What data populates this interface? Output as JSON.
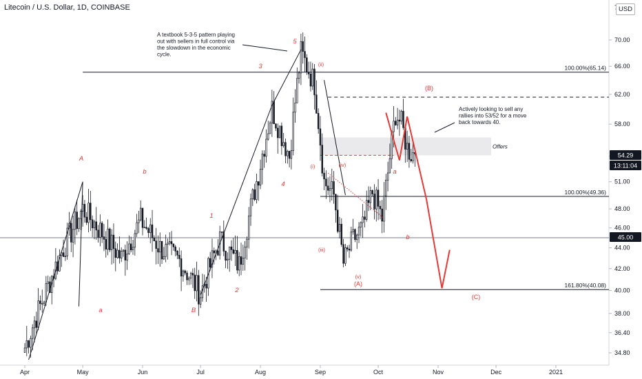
{
  "header": {
    "title": "Litecoin / U.S. Dollar, 1D, COINBASE",
    "currency_button": "USD"
  },
  "chart_data": {
    "type": "candlestick",
    "title": "Litecoin / U.S. Dollar, 1D, COINBASE",
    "x_labels": [
      "Apr",
      "May",
      "Jun",
      "Jul",
      "Aug",
      "Sep",
      "Oct",
      "Nov",
      "Dec",
      "2021"
    ],
    "x_label_days": [
      0,
      30,
      61,
      91,
      122,
      153,
      183,
      214,
      244,
      275
    ],
    "y_ticks": [
      "34.80",
      "36.40",
      "38.00",
      "40.00",
      "42.00",
      "44.00",
      "46.00",
      "48.00",
      "51.00",
      "54.00",
      "58.00",
      "62.00",
      "66.00",
      "70.00"
    ],
    "y_tick_values": [
      34.8,
      36.4,
      38.0,
      40.0,
      42.0,
      44.0,
      46.0,
      48.0,
      51.0,
      54.0,
      58.0,
      62.0,
      66.0,
      70.0
    ],
    "axis_top_label": "7",
    "scale": "log",
    "candle_color": "#131722",
    "wave_color": "#e53935",
    "price_badges": [
      {
        "label": "54.29",
        "value": 54.29,
        "style": "dark"
      },
      {
        "label": "13:11:04",
        "value": 52.9,
        "style": "dark"
      },
      {
        "label": "45.00",
        "value": 45.0,
        "style": "dark"
      }
    ],
    "fib_levels": [
      {
        "label": "100.00%(65.14)",
        "value": 65.14
      },
      {
        "label": "100.00%(49.36)",
        "value": 49.36
      },
      {
        "label": "161.80%(40.08)",
        "value": 40.08
      }
    ],
    "horizontal_lines": [
      {
        "value": 45.0,
        "style": "solid-gray"
      },
      {
        "value": 61.6,
        "style": "dashed"
      },
      {
        "value": 54.1,
        "style": "dashed-red"
      }
    ],
    "offers_zone": {
      "label": "Offers",
      "from": 54.1,
      "to": 56.3
    },
    "annotations": [
      {
        "text": [
          "A textbook 5-3-5 pattern playing",
          "out with sellers in full control via",
          "the slowdown in the economic",
          "cycle."
        ]
      },
      {
        "text": [
          "Actively looking to sell any",
          "rallies into 53/52 for a move",
          "back towards 40."
        ]
      }
    ],
    "wave_labels": [
      {
        "text": "A",
        "day": 30
      },
      {
        "text": "b",
        "day": 61
      },
      {
        "text": "a",
        "day": 37
      },
      {
        "text": "B",
        "day": 91
      },
      {
        "text": "1",
        "day": 101
      },
      {
        "text": "2",
        "day": 115
      },
      {
        "text": "3",
        "day": 128
      },
      {
        "text": "4",
        "day": 137
      },
      {
        "text": "5",
        "day": 145
      },
      {
        "text": "(ii)",
        "day": 150
      },
      {
        "text": "(i)",
        "day": 145
      },
      {
        "text": "(iv)",
        "day": 156
      },
      {
        "text": "(iii)",
        "day": 150
      },
      {
        "text": "(v)",
        "day": 165
      },
      {
        "text": "(A)",
        "day": 166
      },
      {
        "text": "a",
        "day": 180
      },
      {
        "text": "b",
        "day": 185
      },
      {
        "text": "(B)",
        "day": 198
      },
      {
        "text": "(C)",
        "day": 227
      }
    ],
    "series": [
      {
        "name": "",
        "days": [
          0,
          10,
          20,
          30,
          40,
          50,
          60,
          70,
          80,
          91,
          101,
          111,
          121,
          128,
          137,
          143,
          150,
          155,
          160,
          165,
          170,
          175,
          180,
          185,
          188,
          192,
          195,
          198,
          200,
          202
        ],
        "close": [
          35.2,
          39.5,
          44.0,
          48.0,
          45.5,
          43.0,
          46.8,
          44.0,
          42.8,
          39.7,
          44.8,
          42.3,
          52.0,
          60.0,
          54.0,
          68.0,
          63.5,
          51.0,
          49.5,
          42.5,
          44.8,
          46.0,
          49.8,
          47.0,
          52.0,
          59.5,
          58.0,
          55.0,
          54.4,
          54.29
        ]
      }
    ],
    "projection": {
      "days": [
        187,
        194,
        198,
        208,
        216,
        220
      ],
      "values": [
        59.5,
        53.5,
        59.0,
        49.0,
        40.2,
        43.8
      ]
    }
  }
}
